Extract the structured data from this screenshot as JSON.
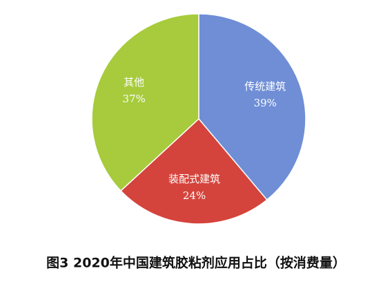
{
  "chart_data": {
    "type": "pie",
    "title": "图3 2020年中国建筑胶粘剂应用占比（按消费量）",
    "categories": [
      "传统建筑",
      "装配式建筑",
      "其他"
    ],
    "values": [
      39,
      24,
      37
    ],
    "value_labels": [
      "39%",
      "24%",
      "37%"
    ],
    "colors": [
      "#6f8ed6",
      "#d4443c",
      "#a7cb3c"
    ]
  }
}
